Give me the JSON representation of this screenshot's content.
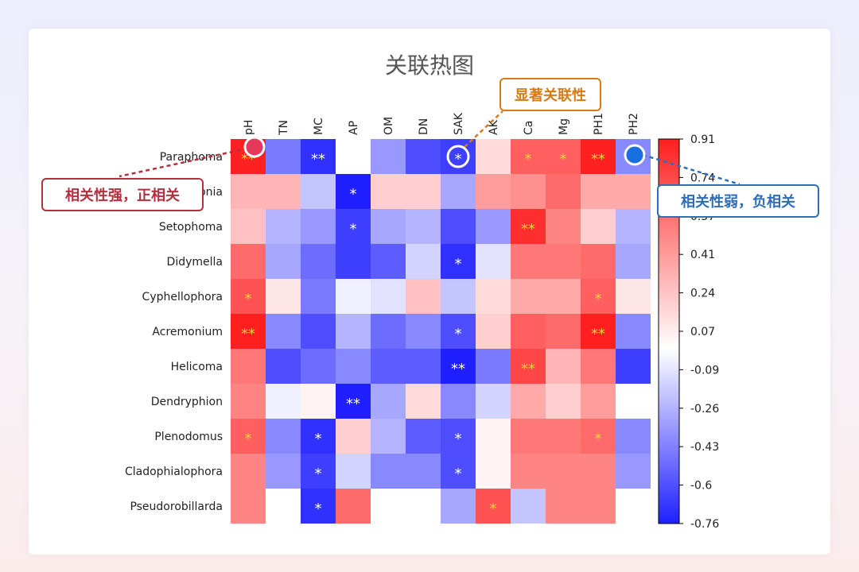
{
  "chart_data": {
    "type": "heatmap",
    "title": "关联热图",
    "columns": [
      "pH",
      "TN",
      "MC",
      "AP",
      "OM",
      "DN",
      "SAK",
      "AK",
      "Ca",
      "Mg",
      "PH1",
      "PH2"
    ],
    "rows": [
      "Paraphoma",
      "Tausonia",
      "Setophoma",
      "Didymella",
      "Cyphellophora",
      "Acremonium",
      "Helicoma",
      "Dendryphion",
      "Plenodomus",
      "Cladophialophora",
      "Pseudorobillarda"
    ],
    "values": [
      [
        0.9,
        -0.45,
        -0.7,
        0.0,
        -0.35,
        -0.6,
        -0.65,
        0.15,
        0.65,
        0.65,
        0.9,
        -0.4
      ],
      [
        0.3,
        0.3,
        -0.2,
        -0.78,
        0.2,
        0.2,
        -0.3,
        0.4,
        0.45,
        0.6,
        0.35,
        0.35
      ],
      [
        0.25,
        -0.25,
        -0.35,
        -0.65,
        -0.3,
        -0.25,
        -0.6,
        -0.35,
        0.85,
        0.5,
        0.2,
        -0.25
      ],
      [
        0.6,
        -0.3,
        -0.5,
        -0.65,
        -0.55,
        -0.15,
        -0.7,
        -0.1,
        0.55,
        0.55,
        0.6,
        -0.3
      ],
      [
        0.7,
        0.1,
        -0.45,
        -0.05,
        -0.1,
        0.25,
        -0.2,
        0.15,
        0.35,
        0.35,
        0.65,
        0.1
      ],
      [
        0.95,
        -0.4,
        -0.6,
        -0.25,
        -0.5,
        -0.4,
        -0.6,
        0.2,
        0.65,
        0.6,
        0.95,
        -0.4
      ],
      [
        0.55,
        -0.6,
        -0.5,
        -0.4,
        -0.55,
        -0.55,
        -0.85,
        -0.45,
        0.75,
        0.3,
        0.55,
        -0.65
      ],
      [
        0.5,
        -0.05,
        0.05,
        -0.85,
        -0.3,
        0.15,
        -0.4,
        -0.15,
        0.35,
        0.2,
        0.4,
        0.0
      ],
      [
        0.65,
        -0.4,
        -0.7,
        0.2,
        -0.25,
        -0.55,
        -0.6,
        0.05,
        0.55,
        0.55,
        0.6,
        -0.4
      ],
      [
        0.5,
        -0.35,
        -0.65,
        -0.15,
        -0.4,
        -0.4,
        -0.6,
        0.05,
        0.5,
        0.5,
        0.5,
        -0.35
      ],
      [
        0.5,
        0.0,
        -0.7,
        0.6,
        0.0,
        0.0,
        -0.3,
        0.7,
        -0.2,
        0.5,
        0.5,
        0.0
      ]
    ],
    "significance": [
      [
        "**",
        "",
        "**",
        "",
        "",
        "",
        "*",
        "",
        "*",
        "*",
        "**",
        ""
      ],
      [
        "",
        "",
        "",
        "*",
        "",
        "",
        "",
        "",
        "",
        "",
        "",
        ""
      ],
      [
        "",
        "",
        "",
        "*",
        "",
        "",
        "",
        "",
        "**",
        "",
        "",
        ""
      ],
      [
        "",
        "",
        "",
        "",
        "",
        "",
        "*",
        "",
        "",
        "",
        "",
        ""
      ],
      [
        "*",
        "",
        "",
        "",
        "",
        "",
        "",
        "",
        "",
        "",
        "*",
        ""
      ],
      [
        "**",
        "",
        "",
        "",
        "",
        "",
        "*",
        "",
        "",
        "",
        "**",
        ""
      ],
      [
        "",
        "",
        "",
        "",
        "",
        "",
        "**",
        "",
        "**",
        "",
        "",
        ""
      ],
      [
        "",
        "",
        "",
        "**",
        "",
        "",
        "",
        "",
        "",
        "",
        "",
        ""
      ],
      [
        "*",
        "",
        "*",
        "",
        "",
        "",
        "*",
        "",
        "",
        "",
        "*",
        ""
      ],
      [
        "",
        "",
        "*",
        "",
        "",
        "",
        "*",
        "",
        "",
        "",
        "",
        ""
      ],
      [
        "",
        "",
        "*",
        "",
        "",
        "",
        "",
        "*",
        "",
        "",
        "",
        ""
      ]
    ],
    "colorbar": {
      "min": -0.76,
      "max": 0.91,
      "ticks": [
        "0.91",
        "0.74",
        "0.57",
        "0.41",
        "0.24",
        "0.07",
        "-0.09",
        "-0.26",
        "-0.43",
        "-0.6",
        "-0.76"
      ],
      "colormap": [
        "#1f1fff",
        "#ffffff",
        "#ff1f1f"
      ]
    },
    "annotations": [
      {
        "text": "相关性强，正相关",
        "color": "#b5303f",
        "marker_color": "#e5385a",
        "target": {
          "row": "Paraphoma",
          "column": "pH"
        }
      },
      {
        "text": "显著关联性",
        "color": "#d77b17",
        "marker_color": "#ffffff",
        "target": {
          "row": "Paraphoma",
          "column": "SAK"
        }
      },
      {
        "text": "相关性弱，负相关",
        "color": "#2f6db6",
        "marker_color": "#1a6fe0",
        "target": {
          "row": "Paraphoma",
          "column": "PH2"
        }
      }
    ]
  }
}
